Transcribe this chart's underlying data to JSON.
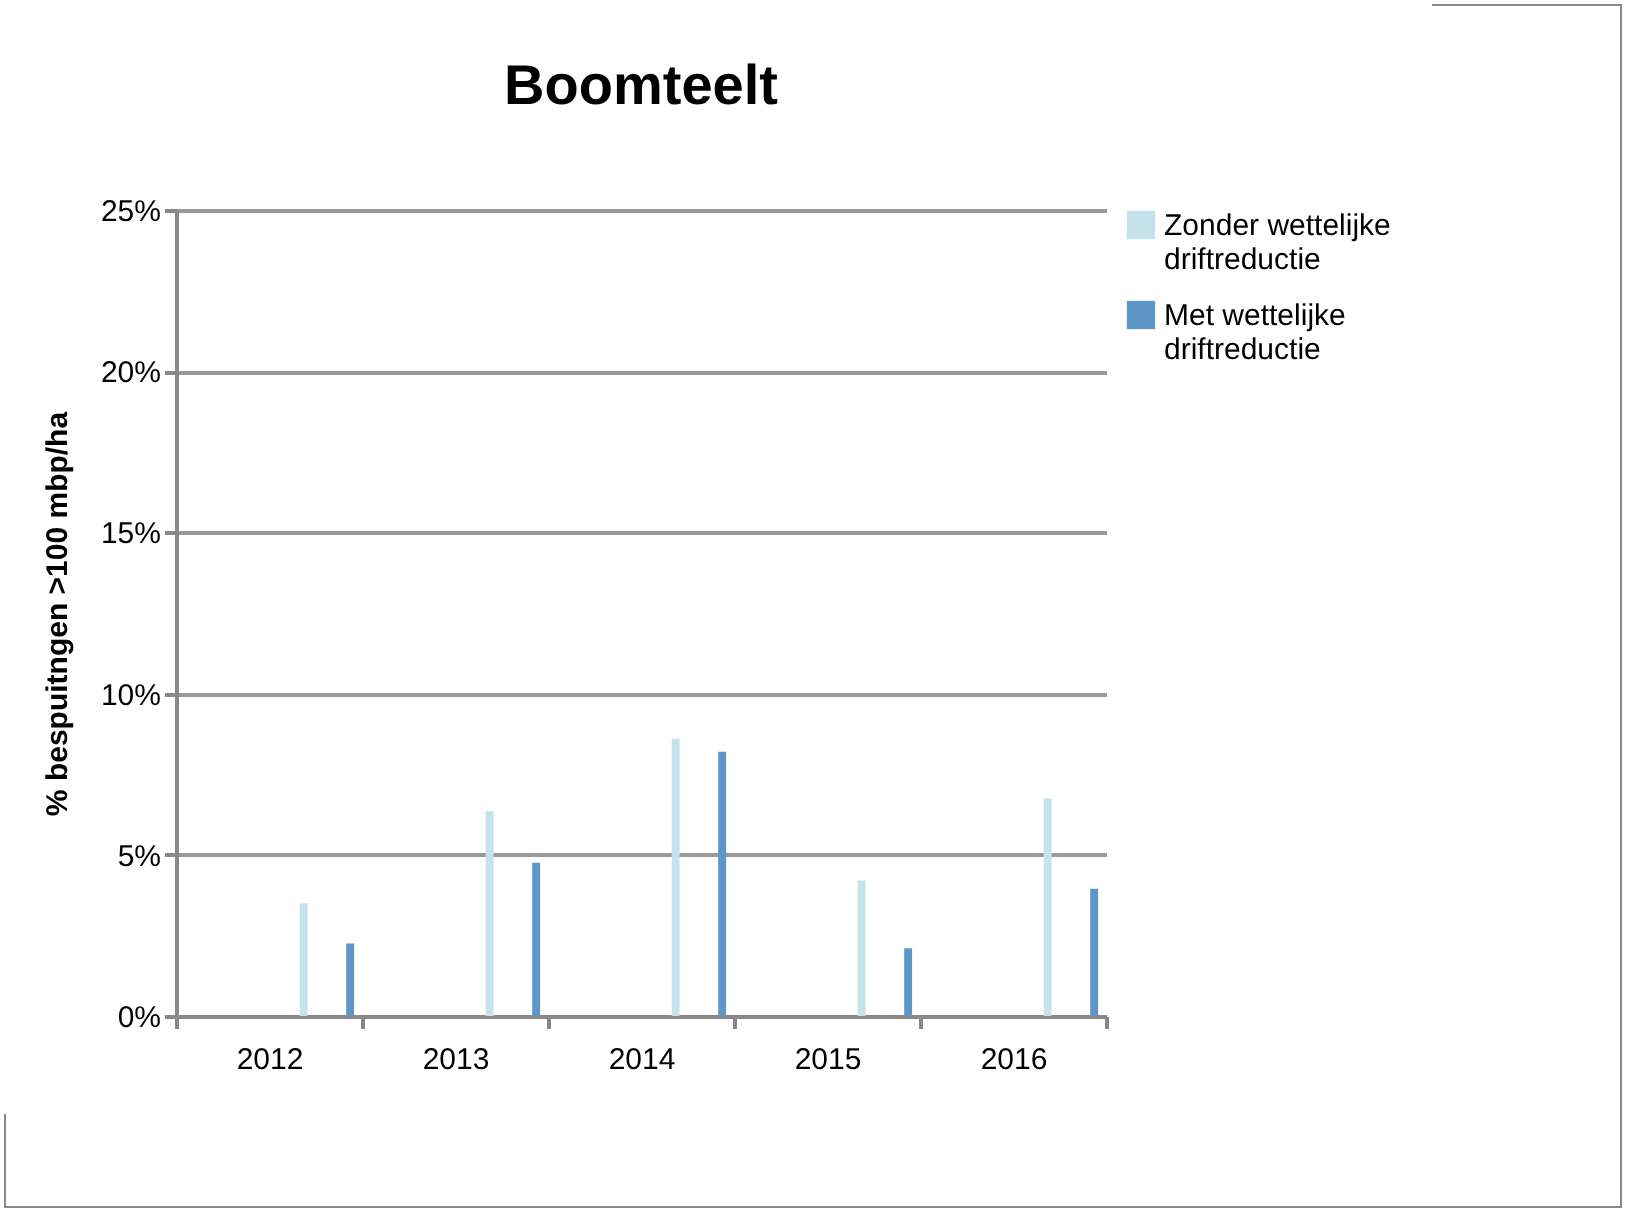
{
  "chart_data": {
    "type": "bar",
    "title": "Boomteelt",
    "ylabel": "% bespuitngen >100 mbp/ha",
    "categories": [
      "2012",
      "2013",
      "2014",
      "2015",
      "2016"
    ],
    "series": [
      {
        "name": "Zonder wettelijke driftreductie",
        "color": "#c4e3ec",
        "values": [
          3.5,
          6.35,
          8.6,
          4.2,
          6.75
        ]
      },
      {
        "name": "Met wettelijke driftreductie",
        "color": "#5f96c9",
        "values": [
          2.25,
          4.75,
          8.2,
          2.1,
          3.95
        ]
      }
    ],
    "ylim": [
      0,
      25
    ],
    "yticks": [
      {
        "value": 0,
        "label": "0%"
      },
      {
        "value": 5,
        "label": "5%"
      },
      {
        "value": 10,
        "label": "10%"
      },
      {
        "value": 15,
        "label": "15%"
      },
      {
        "value": 20,
        "label": "20%"
      },
      {
        "value": 25,
        "label": "25%"
      }
    ],
    "grid": "y",
    "legend": "right"
  }
}
